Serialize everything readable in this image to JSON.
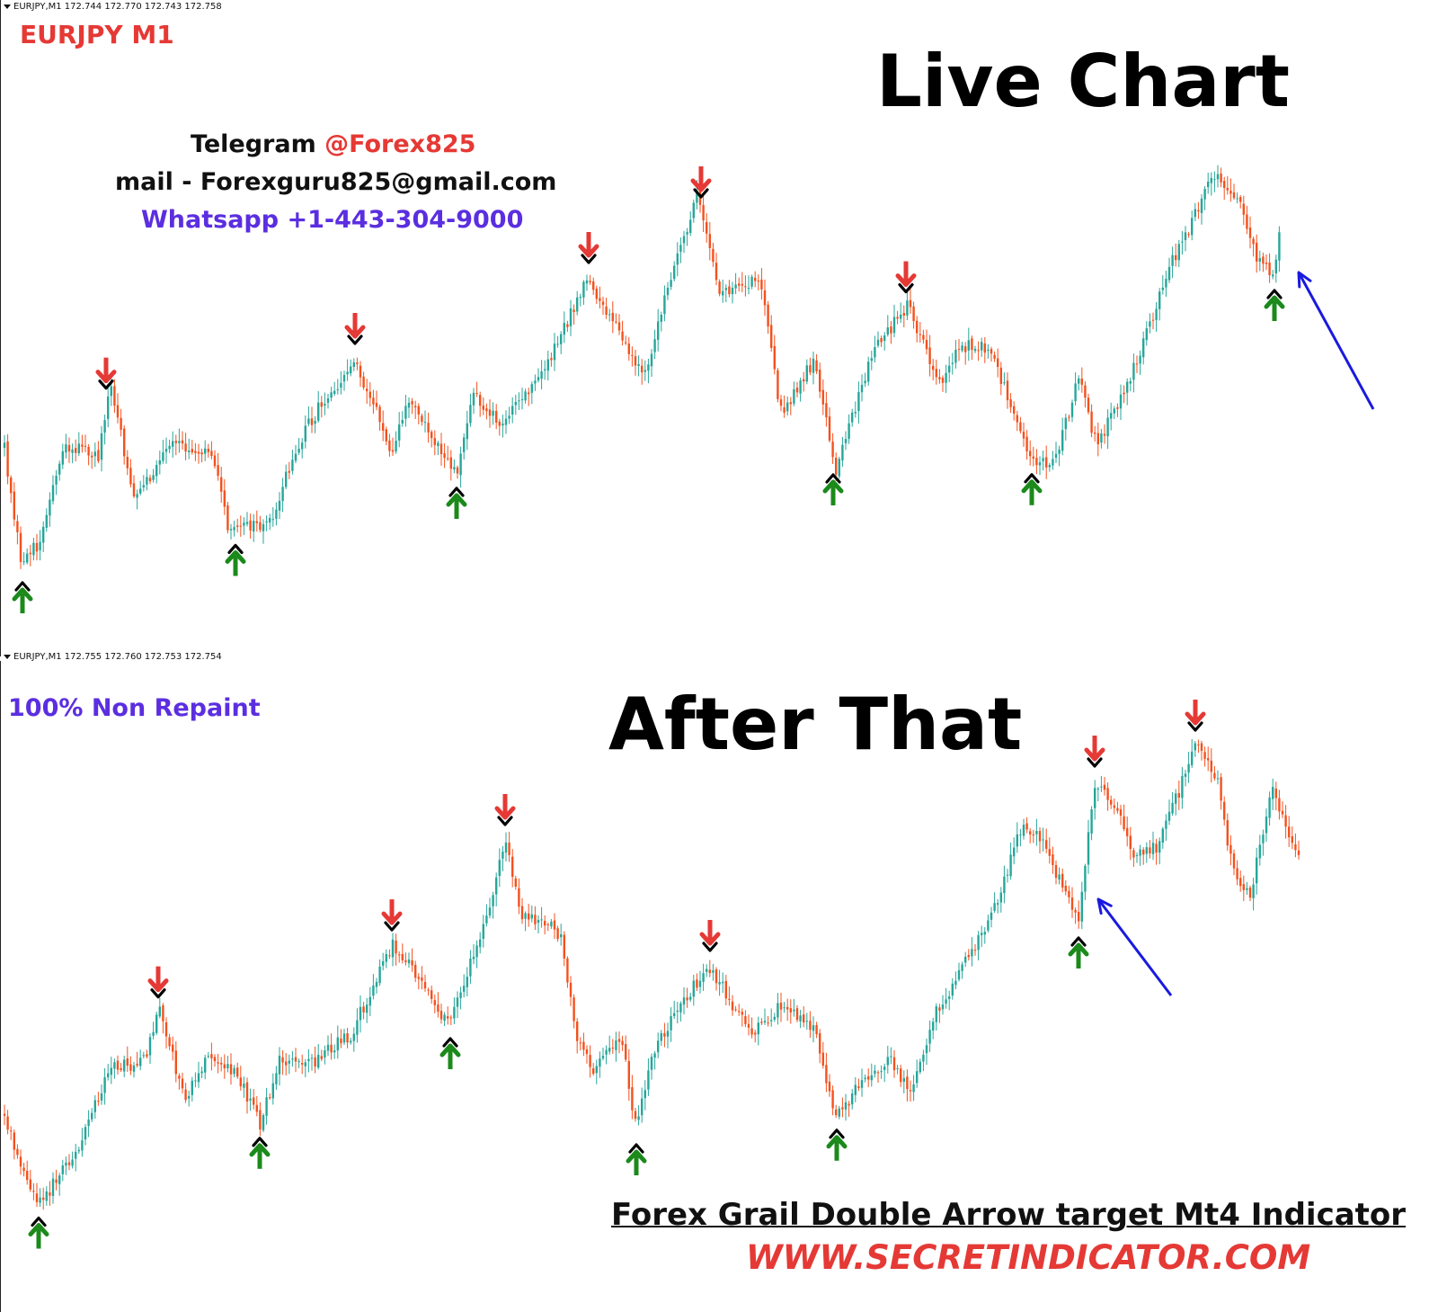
{
  "colors": {
    "bull": "#26a69a",
    "bear": "#f4511e",
    "buy_arrow": "#1b8a1b",
    "sell_arrow": "#e53935",
    "arrow_tip": "#000000",
    "pointer": "#1a1adf"
  },
  "top_panel": {
    "header": "EURJPY,M1  172.744 172.770 172.743 172.758",
    "symbol_label": "EURJPY M1",
    "title": "Live Chart",
    "contact": {
      "telegram_label": "Telegram",
      "telegram_handle": "@Forex825",
      "mail": "mail - Forexguru825@gmail.com",
      "whatsapp": "Whatsapp +1-443-304-9000"
    }
  },
  "bottom_panel": {
    "header": "EURJPY,M1  172.755 172.760 172.753 172.754",
    "badge": "100% Non Repaint",
    "title": "After That",
    "footer_title": "Forex Grail Double Arrow target Mt4 Indicator",
    "footer_url": "WWW.SECRETINDICATOR.COM"
  },
  "chart_data": [
    {
      "type": "candlestick",
      "name": "EURJPY M1 live",
      "x_range": [
        0,
        1430
      ],
      "y_range": [
        0,
        700
      ],
      "path": [
        [
          5,
          500
        ],
        [
          25,
          630
        ],
        [
          45,
          600
        ],
        [
          70,
          495
        ],
        [
          110,
          505
        ],
        [
          122,
          422
        ],
        [
          150,
          560
        ],
        [
          190,
          495
        ],
        [
          235,
          500
        ],
        [
          255,
          590
        ],
        [
          300,
          580
        ],
        [
          340,
          475
        ],
        [
          395,
          400
        ],
        [
          435,
          500
        ],
        [
          455,
          445
        ],
        [
          508,
          525
        ],
        [
          525,
          440
        ],
        [
          560,
          470
        ],
        [
          600,
          420
        ],
        [
          655,
          310
        ],
        [
          715,
          420
        ],
        [
          750,
          300
        ],
        [
          775,
          215
        ],
        [
          800,
          325
        ],
        [
          845,
          310
        ],
        [
          870,
          465
        ],
        [
          905,
          400
        ],
        [
          930,
          525
        ],
        [
          955,
          440
        ],
        [
          975,
          385
        ],
        [
          1010,
          340
        ],
        [
          1045,
          430
        ],
        [
          1065,
          385
        ],
        [
          1100,
          385
        ],
        [
          1150,
          515
        ],
        [
          1175,
          510
        ],
        [
          1200,
          420
        ],
        [
          1220,
          495
        ],
        [
          1255,
          430
        ],
        [
          1300,
          300
        ],
        [
          1350,
          195
        ],
        [
          1375,
          215
        ],
        [
          1400,
          290
        ],
        [
          1418,
          305
        ],
        [
          1425,
          250
        ]
      ],
      "sell_signals": [
        118,
        395,
        655,
        780,
        1008
      ],
      "buy_signals": [
        25,
        262,
        508,
        927,
        1148,
        1418
      ],
      "pointer": {
        "from": [
          1528,
          455
        ],
        "to": [
          1445,
          303
        ]
      }
    },
    {
      "type": "candlestick",
      "name": "EURJPY M1 after",
      "x_range": [
        0,
        1430
      ],
      "y_range": [
        735,
        1459
      ],
      "path": [
        [
          5,
          1240
        ],
        [
          25,
          1305
        ],
        [
          45,
          1340
        ],
        [
          70,
          1300
        ],
        [
          95,
          1260
        ],
        [
          120,
          1190
        ],
        [
          160,
          1180
        ],
        [
          178,
          1120
        ],
        [
          205,
          1225
        ],
        [
          235,
          1170
        ],
        [
          265,
          1195
        ],
        [
          290,
          1250
        ],
        [
          310,
          1180
        ],
        [
          350,
          1180
        ],
        [
          390,
          1150
        ],
        [
          437,
          1050
        ],
        [
          475,
          1100
        ],
        [
          500,
          1140
        ],
        [
          520,
          1080
        ],
        [
          545,
          1005
        ],
        [
          562,
          935
        ],
        [
          580,
          1020
        ],
        [
          600,
          1020
        ],
        [
          625,
          1040
        ],
        [
          640,
          1145
        ],
        [
          660,
          1190
        ],
        [
          690,
          1150
        ],
        [
          708,
          1255
        ],
        [
          730,
          1160
        ],
        [
          770,
          1100
        ],
        [
          790,
          1075
        ],
        [
          810,
          1110
        ],
        [
          835,
          1150
        ],
        [
          870,
          1115
        ],
        [
          905,
          1140
        ],
        [
          930,
          1240
        ],
        [
          970,
          1190
        ],
        [
          990,
          1180
        ],
        [
          1015,
          1215
        ],
        [
          1040,
          1130
        ],
        [
          1075,
          1070
        ],
        [
          1110,
          1000
        ],
        [
          1138,
          915
        ],
        [
          1160,
          935
        ],
        [
          1200,
          1025
        ],
        [
          1218,
          870
        ],
        [
          1245,
          900
        ],
        [
          1260,
          950
        ],
        [
          1290,
          940
        ],
        [
          1330,
          830
        ],
        [
          1355,
          870
        ],
        [
          1370,
          960
        ],
        [
          1390,
          1000
        ],
        [
          1415,
          880
        ],
        [
          1445,
          950
        ]
      ],
      "sell_signals": [
        176,
        436,
        562,
        790,
        1218,
        1330
      ],
      "buy_signals": [
        43,
        289,
        501,
        708,
        931,
        1200
      ],
      "pointer": {
        "from": [
          1303,
          1107
        ],
        "to": [
          1222,
          1000
        ]
      }
    }
  ]
}
